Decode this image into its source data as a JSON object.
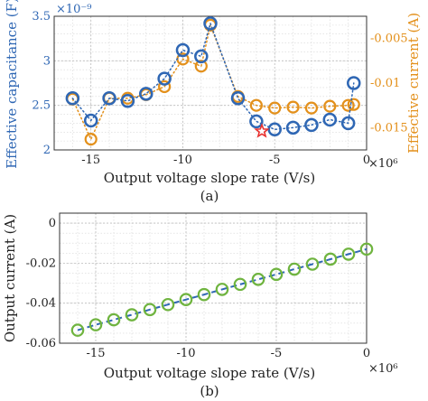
{
  "chart_data": [
    {
      "type": "scatter",
      "panel_label": "(a)",
      "xlabel": "Output voltage slope rate (V/s)",
      "x_exponent_label": "×10⁶",
      "x_scale_exponent": 6,
      "xlim": [
        -17,
        0
      ],
      "xticks": [
        -15,
        -10,
        -5,
        0
      ],
      "ylabel_left": "Effective capacitance (F)",
      "y_left_exponent_label": "×10⁻⁹",
      "y_left_scale_exponent": -9,
      "ylim_left": [
        2,
        3.5
      ],
      "yticks_left": [
        2,
        2.5,
        3,
        3.5
      ],
      "ylabel_right": "Effective current (A)",
      "ylim_right": [
        -0.0175,
        -0.0025
      ],
      "yticks_right": [
        "-0.005",
        "-0.01",
        "-0.015"
      ],
      "yticks_right_values": [
        -0.005,
        -0.01,
        -0.015
      ],
      "grid": true,
      "x": [
        -16,
        -15,
        -14,
        -13,
        -12,
        -11,
        -10,
        -9,
        -8.5,
        -7,
        -6,
        -5,
        -4,
        -3,
        -2,
        -1
      ],
      "series": [
        {
          "axis": "left",
          "color": "#2f67b4",
          "marker": "circle",
          "values": [
            2.58,
            2.33,
            2.58,
            2.55,
            2.63,
            2.8,
            3.12,
            3.05,
            3.42,
            2.58,
            2.32,
            2.23,
            2.25,
            2.28,
            2.34,
            2.3,
            2.75
          ],
          "x": [
            -16,
            -15,
            -14,
            -13,
            -12,
            -11,
            -10,
            -9,
            -8.5,
            -7,
            -6,
            -5,
            -4,
            -3,
            -2,
            -1,
            -0.7
          ]
        },
        {
          "axis": "right",
          "color": "#e3901b",
          "marker": "circle",
          "line": "dotted",
          "values": [
            -0.0118,
            -0.0163,
            -0.0117,
            -0.0117,
            -0.0113,
            -0.0104,
            -0.0073,
            -0.0081,
            -0.0035,
            -0.0115,
            -0.0125,
            -0.0128,
            -0.0127,
            -0.0128,
            -0.0126,
            -0.0125,
            -0.0124
          ],
          "x": [
            -16,
            -15,
            -14,
            -13,
            -12,
            -11,
            -10,
            -9,
            -8.5,
            -7,
            -6,
            -5,
            -4,
            -3,
            -2,
            -1,
            -0.7
          ]
        }
      ],
      "highlight": {
        "x": -5.7,
        "y_left": 2.21,
        "color": "#e8312f",
        "marker": "star"
      }
    },
    {
      "type": "line",
      "panel_label": "(b)",
      "xlabel": "Output voltage slope rate (V/s)",
      "x_exponent_label": "×10⁶",
      "x_scale_exponent": 6,
      "xlim": [
        -17,
        0
      ],
      "xticks": [
        -15,
        -10,
        -5,
        0
      ],
      "ylabel": "Output current (A)",
      "ylim": [
        -0.06,
        0.005
      ],
      "yticks": [
        "0",
        "-0.02",
        "-0.04",
        "-0.06"
      ],
      "yticks_values": [
        0,
        -0.02,
        -0.04,
        -0.06
      ],
      "grid": true,
      "x": [
        -16,
        -15,
        -14,
        -13,
        -12,
        -11,
        -10,
        -9,
        -8,
        -7,
        -6,
        -5,
        -4,
        -3,
        -2,
        -1,
        0
      ],
      "series": [
        {
          "color": "#2f67b4",
          "line": "dashed",
          "marker": "none",
          "values": [
            -0.0535,
            -0.0508,
            -0.0483,
            -0.0458,
            -0.0432,
            -0.0407,
            -0.0382,
            -0.0357,
            -0.0331,
            -0.0306,
            -0.0281,
            -0.0256,
            -0.023,
            -0.0205,
            -0.018,
            -0.0155,
            -0.013
          ]
        },
        {
          "color": "#6fb43f",
          "line": "none",
          "marker": "circle",
          "values": [
            -0.0535,
            -0.0508,
            -0.0483,
            -0.0458,
            -0.0432,
            -0.0407,
            -0.0382,
            -0.0357,
            -0.0331,
            -0.0306,
            -0.0281,
            -0.0256,
            -0.023,
            -0.0205,
            -0.018,
            -0.0155,
            -0.013
          ]
        }
      ]
    }
  ]
}
